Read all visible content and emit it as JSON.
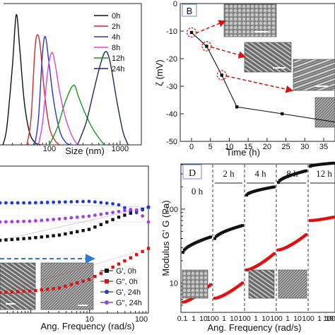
{
  "chart_data": [
    {
      "type": "line",
      "xlabel": "Size (nm)",
      "xscale": "log",
      "xlim": [
        20,
        2000
      ],
      "ylim": [
        0,
        16
      ],
      "x_tick_labels": [
        {
          "x": 100,
          "label": "100"
        },
        {
          "x": 1000,
          "label": "1000"
        }
      ],
      "y_ticks_labeled": false,
      "grid": false,
      "legend_placement": "top-right",
      "series": [
        {
          "name": "0h",
          "color": "#111111",
          "points": [
            [
              22,
              0
            ],
            [
              25,
              2
            ],
            [
              30,
              9
            ],
            [
              34,
              14.8
            ],
            [
              38,
              11
            ],
            [
              44,
              5
            ],
            [
              52,
              1.5
            ],
            [
              62,
              0.3
            ],
            [
              75,
              0
            ]
          ]
        },
        {
          "name": "2h",
          "color": "#d62728",
          "points": [
            [
              48,
              0
            ],
            [
              55,
              3
            ],
            [
              62,
              10.5
            ],
            [
              67,
              12.5
            ],
            [
              74,
              11.3
            ],
            [
              85,
              6
            ],
            [
              100,
              2
            ],
            [
              120,
              0.5
            ],
            [
              140,
              0
            ]
          ]
        },
        {
          "name": "4h",
          "color": "#2b33d6",
          "points": [
            [
              62,
              0
            ],
            [
              70,
              3
            ],
            [
              80,
              10.5
            ],
            [
              88,
              12.3
            ],
            [
              98,
              9.5
            ],
            [
              115,
              5
            ],
            [
              140,
              1.6
            ],
            [
              170,
              0.3
            ],
            [
              200,
              0
            ]
          ]
        },
        {
          "name": "8h",
          "color": "#e040e0",
          "points": [
            [
              70,
              0
            ],
            [
              80,
              2.5
            ],
            [
              95,
              8.5
            ],
            [
              108,
              10.5
            ],
            [
              120,
              9.3
            ],
            [
              140,
              6
            ],
            [
              170,
              3
            ],
            [
              210,
              1
            ],
            [
              250,
              0
            ]
          ]
        },
        {
          "name": "12h",
          "color": "#1a9a1a",
          "points": [
            [
              100,
              0
            ],
            [
              130,
              2
            ],
            [
              170,
              5
            ],
            [
              220,
              6.8
            ],
            [
              260,
              5.4
            ],
            [
              320,
              3.6
            ],
            [
              400,
              2
            ],
            [
              500,
              0.8
            ],
            [
              600,
              0
            ]
          ]
        },
        {
          "name": "24h",
          "color": "#1f2a5a",
          "points": [
            [
              250,
              0
            ],
            [
              330,
              2.5
            ],
            [
              420,
              6
            ],
            [
              520,
              9
            ],
            [
              620,
              10.6
            ],
            [
              720,
              9.5
            ],
            [
              900,
              5
            ],
            [
              1100,
              1.5
            ],
            [
              1300,
              0
            ]
          ]
        }
      ]
    },
    {
      "type": "line",
      "panel_label": "B",
      "xlabel": "Time (h)",
      "ylabel": "ζ (mV)",
      "xlim": [
        -3,
        38
      ],
      "ylim": [
        -50,
        0
      ],
      "x_ticks": [
        0,
        5,
        10,
        15,
        20,
        25,
        30,
        35
      ],
      "y_ticks": [
        0,
        -10,
        -20,
        -30,
        -40,
        -50
      ],
      "grid": false,
      "series": [
        {
          "color": "#111111",
          "points": [
            [
              0,
              -10.5
            ],
            [
              4,
              -15.5
            ],
            [
              8,
              -26
            ],
            [
              12,
              -37.5
            ],
            [
              24,
              -40
            ],
            [
              38,
              -43
            ]
          ]
        }
      ],
      "circled_points": [
        0,
        1,
        2
      ]
    },
    {
      "type": "scatter",
      "xlabel": "Ang. Frequency (rad/s)",
      "xscale": "log",
      "xlim": [
        0.3,
        100
      ],
      "ylim": [
        0,
        10
      ],
      "x_tick_labels": [
        {
          "x": 10,
          "label": "10"
        },
        {
          "x": 100,
          "label": "100"
        }
      ],
      "y_ticks_labeled": false,
      "grid": false,
      "legend_placement": "bottom-right",
      "series": [
        {
          "name": "G', 0h",
          "color": "#111111",
          "marker": "square",
          "points": [
            [
              0.3,
              4.95
            ],
            [
              1,
              5.1
            ],
            [
              3,
              5.3
            ],
            [
              10,
              5.7
            ],
            [
              30,
              6.5
            ],
            [
              100,
              7.2
            ]
          ]
        },
        {
          "name": "G\", 0h",
          "color": "#e01010",
          "marker": "square",
          "points": [
            [
              0.3,
              1.4
            ],
            [
              1,
              1.5
            ],
            [
              3,
              1.7
            ],
            [
              10,
              2.3
            ],
            [
              30,
              3.3
            ],
            [
              100,
              4.4
            ]
          ]
        },
        {
          "name": "G', 24h",
          "color": "#1f3ad6",
          "marker": "circle",
          "points": [
            [
              0.3,
              7.5
            ],
            [
              1,
              7.5
            ],
            [
              3,
              7.55
            ],
            [
              10,
              7.6
            ],
            [
              30,
              7.4
            ],
            [
              60,
              6.8
            ],
            [
              100,
              7.2
            ]
          ]
        },
        {
          "name": "G\", 24h",
          "color": "#a040e0",
          "marker": "circle",
          "points": [
            [
              0.3,
              6.2
            ],
            [
              1,
              6.25
            ],
            [
              3,
              6.4
            ],
            [
              10,
              6.6
            ],
            [
              30,
              6.9
            ],
            [
              60,
              7.1
            ],
            [
              100,
              6.2
            ]
          ]
        }
      ]
    },
    {
      "type": "scatter",
      "panel_label": "D",
      "xlabel": "Ang. Frequency (rad/s)",
      "ylabel": "Modulus G' G (Pa)",
      "yscale": "log",
      "ylim": [
        4,
        400
      ],
      "y_tick_labels": [
        {
          "y": 10,
          "label": "10"
        },
        {
          "y": 100,
          "label": "100"
        }
      ],
      "x_tick_labels": [
        "0.1",
        "1",
        "10",
        "100",
        "1",
        "10",
        "100",
        "1",
        "10",
        "100",
        "1",
        "10",
        "100",
        "1",
        "10",
        "100"
      ],
      "segments": [
        {
          "label": "0 h",
          "gp": [
            26,
            42
          ],
          "gpp": [
            5.5,
            9.5
          ]
        },
        {
          "label": "2 h",
          "gp": [
            40,
            60
          ],
          "gpp": [
            6.2,
            10
          ]
        },
        {
          "label": "4 h",
          "gp": [
            155,
            200
          ],
          "gpp": [
            15,
            25
          ]
        },
        {
          "label": "8 h",
          "gp": [
            230,
            330
          ],
          "gpp": [
            28,
            45
          ]
        },
        {
          "label": "12 h",
          "gp": [
            380,
            420
          ],
          "gpp": [
            70,
            78
          ]
        }
      ],
      "series": [
        {
          "name": "G'",
          "color": "#111111",
          "marker": "square"
        },
        {
          "name": "G\"",
          "color": "#e01010",
          "marker": "square"
        }
      ]
    }
  ]
}
